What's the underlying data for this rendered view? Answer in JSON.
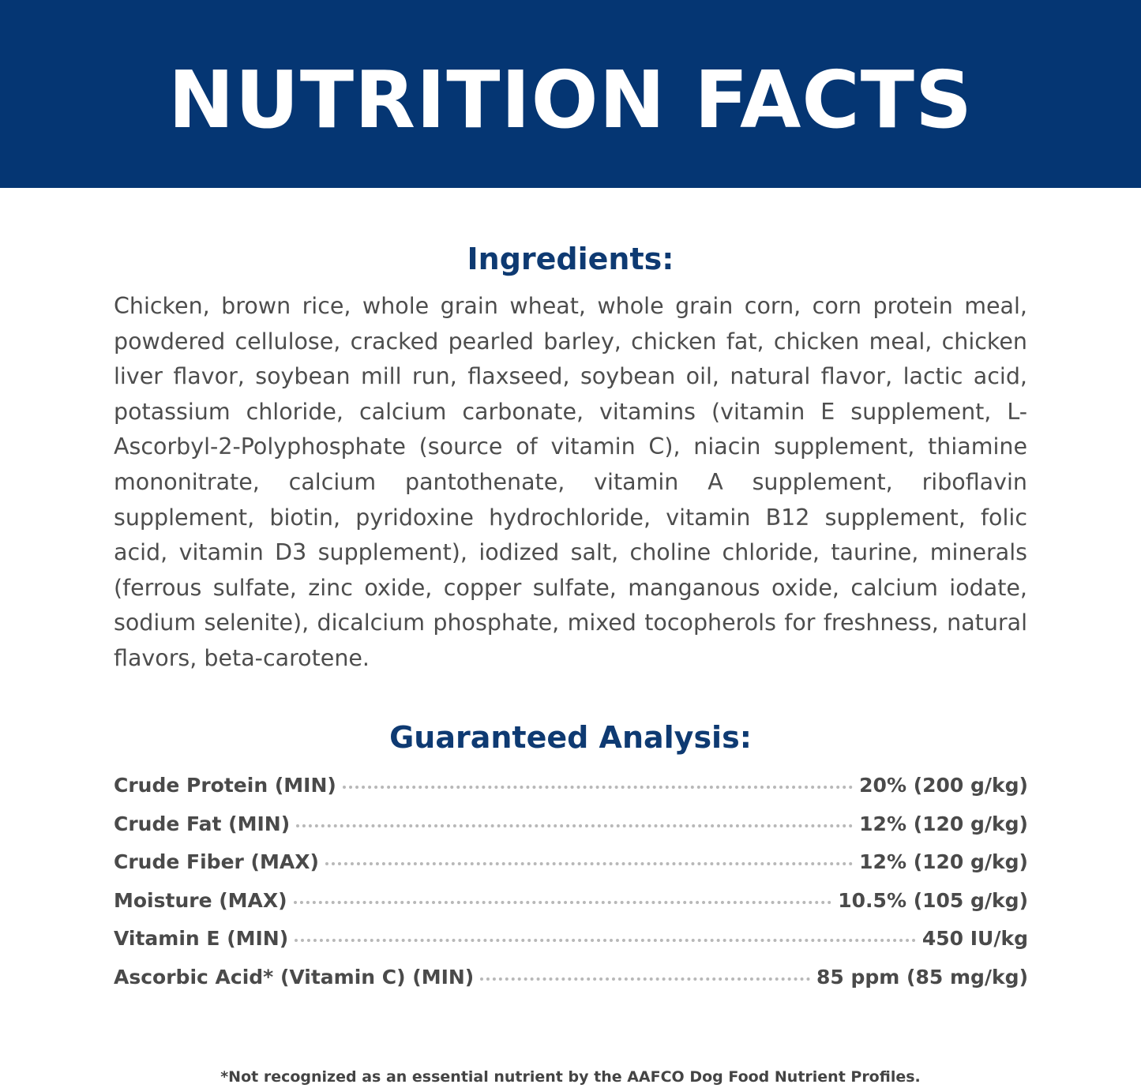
{
  "header": {
    "title": "NUTRITION FACTS",
    "background_color": "#053673"
  },
  "ingredients": {
    "heading": "Ingredients:",
    "text": "Chicken, brown rice, whole grain wheat, whole grain corn, corn protein meal, powdered cellulose, cracked pearled barley, chicken fat, chicken meal, chicken liver flavor, soybean mill run, flaxseed, soybean oil, natural flavor, lactic acid, potassium chloride, calcium carbonate, vitamins (vitamin E supplement, L-Ascorbyl-2-Polyphosphate (source of vitamin C), niacin supplement, thiamine mononitrate, calcium pantothenate, vitamin A supplement, riboflavin supplement, biotin, pyridoxine hydrochloride, vitamin B12 supplement, folic acid, vitamin D3 supplement), iodized salt, choline chloride, taurine, minerals (ferrous sulfate, zinc oxide, copper sulfate, manganous oxide, calcium iodate, sodium selenite), dicalcium phosphate, mixed tocopherols for freshness, natural flavors, beta-carotene."
  },
  "analysis": {
    "heading": "Guaranteed Analysis:",
    "rows": [
      {
        "label": "Crude Protein (MIN)",
        "value": "20% (200 g/kg)"
      },
      {
        "label": "Crude Fat (MIN)",
        "value": "12% (120 g/kg)"
      },
      {
        "label": "Crude Fiber (MAX)",
        "value": "12% (120 g/kg)"
      },
      {
        "label": "Moisture (MAX)",
        "value": "10.5% (105 g/kg)"
      },
      {
        "label": "Vitamin E (MIN)",
        "value": "450 IU/kg"
      },
      {
        "label": "Ascorbic Acid* (Vitamin C) (MIN)",
        "value": "85 ppm (85 mg/kg)"
      }
    ]
  },
  "footnote": "*Not recognized as an essential nutrient by the AAFCO Dog Food Nutrient Profiles."
}
